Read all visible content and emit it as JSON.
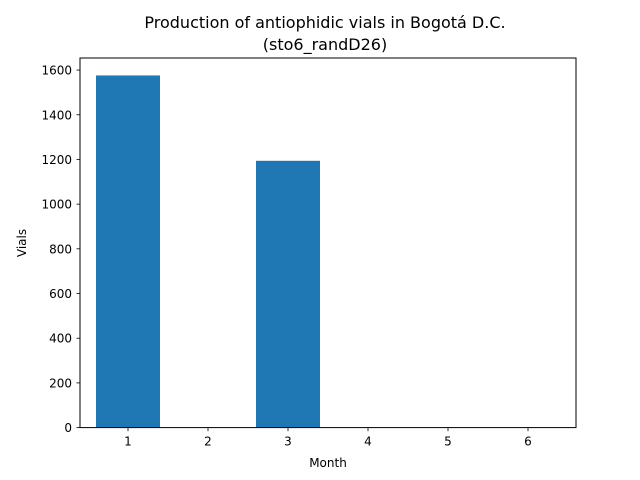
{
  "chart_data": {
    "type": "bar",
    "title": "Production of antiophidic vials in Bogotá D.C.",
    "subtitle": "(sto6_randD26)",
    "xlabel": "Month",
    "ylabel": "Vials",
    "categories": [
      "1",
      "2",
      "3",
      "4",
      "5",
      "6"
    ],
    "values": [
      1576,
      0,
      1194,
      0,
      0,
      0
    ],
    "xlim": [
      0.4,
      6.6
    ],
    "ylim": [
      0,
      1654
    ],
    "yticks": [
      0,
      200,
      400,
      600,
      800,
      1000,
      1200,
      1400,
      1600
    ],
    "ytick_labels": [
      "0",
      "200",
      "400",
      "600",
      "800",
      "1000",
      "1200",
      "1400",
      "1600"
    ],
    "bar_width": 0.8,
    "grid": false,
    "bar_color": "#1f77b4"
  }
}
